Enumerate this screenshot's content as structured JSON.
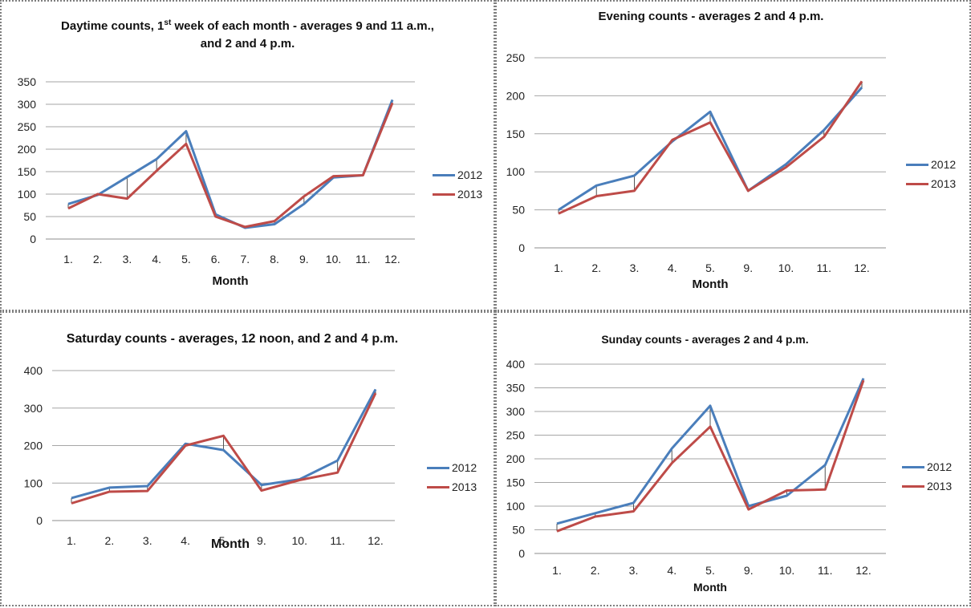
{
  "colors": {
    "series_2012": "#4a7ebb",
    "series_2013": "#be4b48",
    "grid": "#a6a6a6",
    "drop": "#555555"
  },
  "chart_data": [
    {
      "type": "line",
      "title_pre": "Daytime counts, 1",
      "title_sup": "st",
      "title_post": " week of each month - averages 9 and 11 a.m.,",
      "title_line2": "and 2 and 4 p.m.",
      "xlabel": "Month",
      "ylabel": "",
      "categories": [
        "1.",
        "2.",
        "3.",
        "4.",
        "5.",
        "6.",
        "7.",
        "8.",
        "9.",
        "10.",
        "11.",
        "12."
      ],
      "ylim": [
        0,
        350
      ],
      "yticks": [
        "0",
        "50",
        "100",
        "150",
        "200",
        "250",
        "300",
        "350"
      ],
      "grid": true,
      "legend_position": "right",
      "series": [
        {
          "name": "2012",
          "values": [
            78,
            98,
            138,
            178,
            240,
            55,
            25,
            33,
            78,
            137,
            142,
            310
          ]
        },
        {
          "name": "2013",
          "values": [
            68,
            100,
            90,
            152,
            212,
            50,
            27,
            40,
            95,
            140,
            142,
            303
          ]
        }
      ]
    },
    {
      "type": "line",
      "title": "Evening counts - averages 2 and 4 p.m.",
      "xlabel": "Month",
      "ylabel": "",
      "categories": [
        "1.",
        "2.",
        "3.",
        "4.",
        "5.",
        "9.",
        "10.",
        "11.",
        "12."
      ],
      "ylim": [
        0,
        250
      ],
      "yticks": [
        "0",
        "50",
        "100",
        "150",
        "200",
        "250"
      ],
      "grid": true,
      "legend_position": "right",
      "series": [
        {
          "name": "2012",
          "values": [
            50,
            82,
            95,
            140,
            179,
            75,
            110,
            155,
            211
          ]
        },
        {
          "name": "2013",
          "values": [
            45,
            68,
            75,
            142,
            165,
            75,
            106,
            146,
            219
          ]
        }
      ]
    },
    {
      "type": "line",
      "title": "Saturday counts - averages, 12 noon, and 2 and 4 p.m.",
      "xlabel": "Month",
      "ylabel": "",
      "categories": [
        "1.",
        "2.",
        "3.",
        "4.",
        "5.",
        "9.",
        "10.",
        "11.",
        "12."
      ],
      "ylim": [
        0,
        400
      ],
      "yticks": [
        "0",
        "100",
        "200",
        "300",
        "400"
      ],
      "grid": true,
      "legend_position": "right",
      "series": [
        {
          "name": "2012",
          "values": [
            60,
            88,
            92,
            205,
            188,
            95,
            110,
            160,
            350
          ]
        },
        {
          "name": "2013",
          "values": [
            46,
            77,
            79,
            200,
            226,
            80,
            108,
            128,
            340
          ]
        }
      ]
    },
    {
      "type": "line",
      "title": "Sunday counts - averages 2 and 4 p.m.",
      "xlabel": "Month",
      "ylabel": "",
      "categories": [
        "1.",
        "2.",
        "3.",
        "4.",
        "5.",
        "9.",
        "10.",
        "11.",
        "12."
      ],
      "ylim": [
        0,
        400
      ],
      "yticks": [
        "0",
        "50",
        "100",
        "150",
        "200",
        "250",
        "300",
        "350",
        "400"
      ],
      "grid": true,
      "legend_position": "right",
      "series": [
        {
          "name": "2012",
          "values": [
            63,
            85,
            107,
            222,
            312,
            100,
            122,
            187,
            370
          ]
        },
        {
          "name": "2013",
          "values": [
            47,
            78,
            89,
            191,
            268,
            93,
            133,
            135,
            366
          ]
        }
      ]
    }
  ]
}
